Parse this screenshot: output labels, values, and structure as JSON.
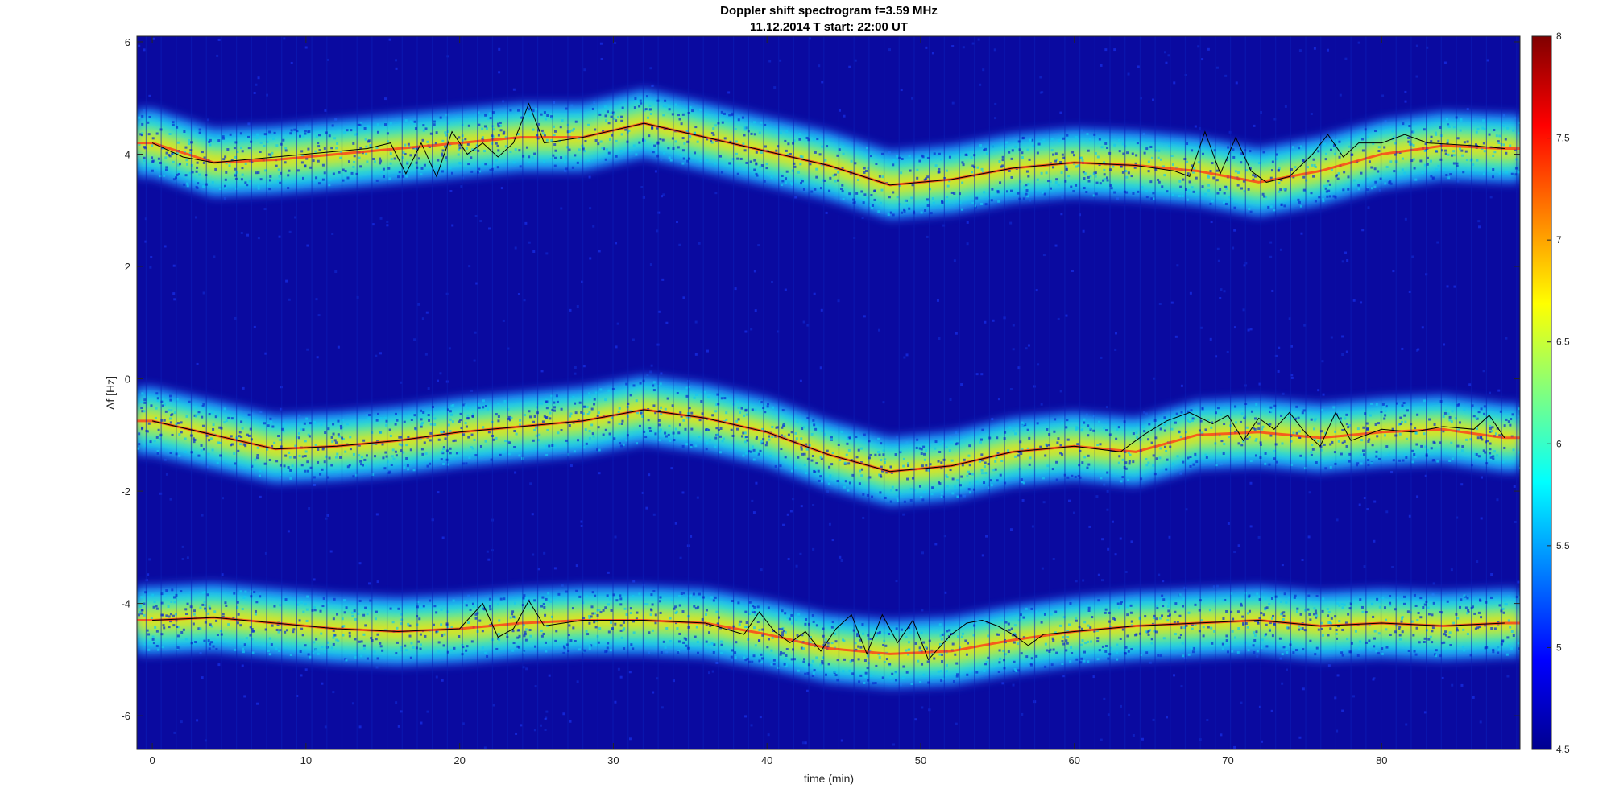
{
  "chart_data": {
    "type": "heatmap",
    "title": "Doppler shift spectrogram f=3.59 MHz",
    "subtitle": "11.12.2014   T start: 22:00 UT",
    "xlabel": "time (min)",
    "ylabel": "Δf [Hz]",
    "xlim": [
      -1,
      89
    ],
    "ylim": [
      -6.6,
      6.1
    ],
    "xticks": [
      0,
      10,
      20,
      30,
      40,
      50,
      60,
      70,
      80
    ],
    "yticks": [
      -6,
      -4,
      -2,
      0,
      2,
      4,
      6
    ],
    "colorbar": {
      "colormap": "jet",
      "clim": [
        4.5,
        8
      ],
      "ticks": [
        4.5,
        5,
        5.5,
        6,
        6.5,
        7,
        7.5,
        8
      ]
    },
    "bands": [
      {
        "t": [
          0,
          4,
          8,
          12,
          16,
          20,
          24,
          28,
          32,
          36,
          40,
          44,
          48,
          52,
          56,
          60,
          64,
          68,
          72,
          76,
          80,
          84,
          88
        ],
        "df": [
          4.2,
          3.85,
          3.9,
          4.0,
          4.1,
          4.2,
          4.3,
          4.3,
          4.55,
          4.3,
          4.05,
          3.8,
          3.45,
          3.55,
          3.75,
          3.85,
          3.8,
          3.7,
          3.5,
          3.7,
          4.0,
          4.15,
          4.1
        ]
      },
      {
        "t": [
          0,
          4,
          8,
          12,
          16,
          20,
          24,
          28,
          32,
          36,
          40,
          44,
          48,
          52,
          56,
          60,
          64,
          68,
          72,
          76,
          80,
          84,
          88
        ],
        "df": [
          -0.75,
          -1.0,
          -1.25,
          -1.2,
          -1.1,
          -0.95,
          -0.85,
          -0.75,
          -0.55,
          -0.7,
          -0.95,
          -1.35,
          -1.65,
          -1.55,
          -1.3,
          -1.2,
          -1.3,
          -1.0,
          -0.95,
          -1.05,
          -0.95,
          -0.9,
          -1.05
        ]
      },
      {
        "t": [
          0,
          4,
          8,
          12,
          16,
          20,
          24,
          28,
          32,
          36,
          40,
          44,
          48,
          52,
          56,
          60,
          64,
          68,
          72,
          76,
          80,
          84,
          88
        ],
        "df": [
          -4.3,
          -4.25,
          -4.35,
          -4.45,
          -4.5,
          -4.45,
          -4.35,
          -4.3,
          -4.3,
          -4.35,
          -4.55,
          -4.8,
          -4.9,
          -4.85,
          -4.65,
          -4.5,
          -4.4,
          -4.35,
          -4.3,
          -4.4,
          -4.35,
          -4.4,
          -4.35
        ]
      }
    ],
    "trace_series": [
      {
        "t": [
          0,
          2,
          4,
          6,
          8,
          10,
          12,
          14,
          15.5,
          16.5,
          17.5,
          18.5,
          19.5,
          20.5,
          21.5,
          22.5,
          23.5,
          24.5,
          25.5,
          28,
          32,
          36,
          40,
          44,
          48,
          52,
          56,
          60,
          64,
          66.5,
          67.5,
          68.5,
          69.5,
          70.5,
          71.5,
          72.5,
          74,
          75.5,
          76.5,
          77.5,
          78.5,
          80,
          81.5,
          83,
          86,
          88
        ],
        "df": [
          4.2,
          3.95,
          3.85,
          3.9,
          3.95,
          4.0,
          4.05,
          4.1,
          4.2,
          3.65,
          4.2,
          3.6,
          4.4,
          4.0,
          4.2,
          3.95,
          4.2,
          4.9,
          4.2,
          4.3,
          4.55,
          4.3,
          4.05,
          3.8,
          3.45,
          3.55,
          3.75,
          3.85,
          3.8,
          3.7,
          3.6,
          4.4,
          3.65,
          4.3,
          3.7,
          3.5,
          3.6,
          4.0,
          4.35,
          3.95,
          4.2,
          4.2,
          4.35,
          4.2,
          4.15,
          4.1
        ]
      },
      {
        "t": [
          0,
          4,
          8,
          12,
          16,
          20,
          24,
          28,
          32,
          36,
          40,
          44,
          48,
          52,
          56,
          60,
          63,
          64.5,
          66,
          67.5,
          69,
          70,
          71,
          72,
          73,
          74,
          75,
          76,
          77,
          78,
          80,
          82,
          84,
          86,
          87,
          88
        ],
        "df": [
          -0.75,
          -1.0,
          -1.25,
          -1.2,
          -1.1,
          -0.95,
          -0.85,
          -0.75,
          -0.55,
          -0.7,
          -0.95,
          -1.35,
          -1.65,
          -1.55,
          -1.3,
          -1.2,
          -1.3,
          -1.0,
          -0.75,
          -0.6,
          -0.8,
          -0.65,
          -1.1,
          -0.7,
          -0.9,
          -0.6,
          -0.95,
          -1.2,
          -0.6,
          -1.1,
          -0.9,
          -0.95,
          -0.85,
          -0.9,
          -0.65,
          -1.05
        ]
      },
      {
        "t": [
          0,
          4,
          8,
          12,
          16,
          20,
          21.5,
          22.5,
          23.5,
          24.5,
          25.5,
          28,
          32,
          36,
          38.5,
          39.5,
          40.5,
          41.5,
          42.5,
          43.5,
          44.5,
          45.5,
          46.5,
          47.5,
          48.5,
          49.5,
          50.5,
          52,
          53,
          54,
          55,
          56,
          57,
          58,
          60,
          64,
          68,
          72,
          76,
          80,
          84,
          88
        ],
        "df": [
          -4.3,
          -4.25,
          -4.35,
          -4.45,
          -4.5,
          -4.45,
          -4.0,
          -4.6,
          -4.45,
          -3.95,
          -4.4,
          -4.3,
          -4.3,
          -4.35,
          -4.55,
          -4.15,
          -4.5,
          -4.7,
          -4.5,
          -4.85,
          -4.45,
          -4.2,
          -4.9,
          -4.2,
          -4.7,
          -4.3,
          -5.0,
          -4.55,
          -4.35,
          -4.3,
          -4.4,
          -4.55,
          -4.75,
          -4.55,
          -4.5,
          -4.4,
          -4.35,
          -4.3,
          -4.4,
          -4.35,
          -4.4,
          -4.35
        ]
      }
    ]
  }
}
